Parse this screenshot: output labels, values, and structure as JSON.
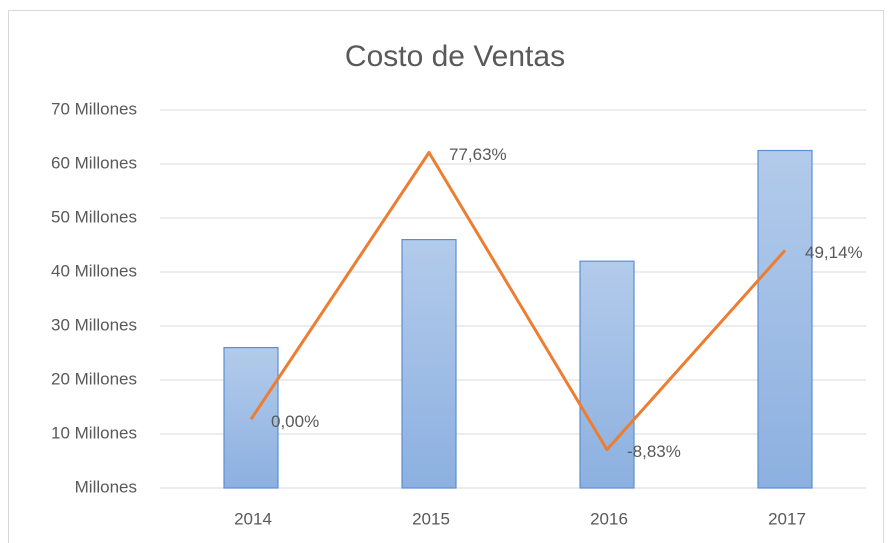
{
  "chart_data": {
    "type": "bar",
    "title": "Costo de Ventas",
    "categories": [
      "2014",
      "2015",
      "2016",
      "2017"
    ],
    "series": [
      {
        "type": "bar",
        "color": "#9dbce6",
        "values": [
          26,
          46,
          42,
          62.5
        ]
      },
      {
        "type": "line",
        "axis": "y2",
        "color": "#ed7d31",
        "values": [
          0,
          77.63,
          -8.83,
          49.14
        ],
        "value_labels": [
          "0,00%",
          "77,63%",
          "-8,83%",
          "49,14%"
        ]
      }
    ],
    "ylim": [
      0,
      70
    ],
    "yticks": [
      {
        "value": 0,
        "label": "Millones"
      },
      {
        "value": 10,
        "label": "10 Millones"
      },
      {
        "value": 20,
        "label": "20 Millones"
      },
      {
        "value": 30,
        "label": "30 Millones"
      },
      {
        "value": 40,
        "label": "40 Millones"
      },
      {
        "value": 50,
        "label": "50 Millones"
      },
      {
        "value": 60,
        "label": "60 Millones"
      },
      {
        "value": 70,
        "label": "70 Millones"
      }
    ],
    "y2lim": [
      -20,
      90
    ],
    "grid": true
  }
}
